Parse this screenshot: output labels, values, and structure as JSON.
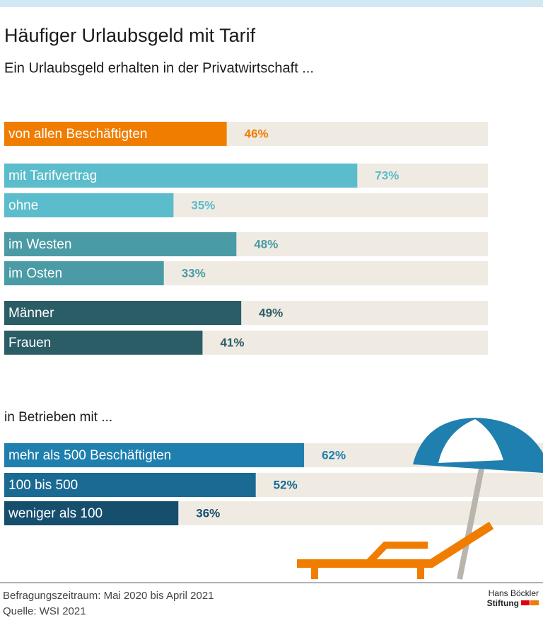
{
  "chart_data": [
    {
      "type": "bar",
      "orientation": "horizontal",
      "title": "Häufiger Urlaubsgeld mit Tarif",
      "subtitle": "Ein Urlaubsgeld erhalten in der Privatwirtschaft ...",
      "categories": [
        "von allen Beschäftigten",
        "mit Tarifvertrag",
        "ohne",
        "im Westen",
        "im Osten",
        "Männer",
        "Frauen"
      ],
      "values": [
        46,
        73,
        35,
        48,
        33,
        49,
        41
      ],
      "value_labels": [
        "46%",
        "73%",
        "35%",
        "48%",
        "33%",
        "49%",
        "41%"
      ],
      "colors": [
        "#f07d00",
        "#5bbccb",
        "#5bbccb",
        "#4a9ba5",
        "#4a9ba5",
        "#2b5d66",
        "#2b5d66"
      ],
      "xlim": [
        0,
        100
      ]
    },
    {
      "type": "bar",
      "orientation": "horizontal",
      "title": "in Betrieben mit ...",
      "categories": [
        "mehr als 500 Beschäftigten",
        "100 bis 500",
        "weniger als 100"
      ],
      "values": [
        62,
        52,
        36
      ],
      "value_labels": [
        "62%",
        "52%",
        "36%"
      ],
      "colors": [
        "#1f7fae",
        "#1a6a93",
        "#164e6e"
      ],
      "xlim": [
        0,
        100
      ]
    }
  ],
  "notes": [
    "Befragungszeitraum: Mai 2020 bis April 2021",
    "Quelle: WSI 2021"
  ],
  "logo": {
    "line1": "Hans Böckler",
    "line2": "Stiftung"
  }
}
